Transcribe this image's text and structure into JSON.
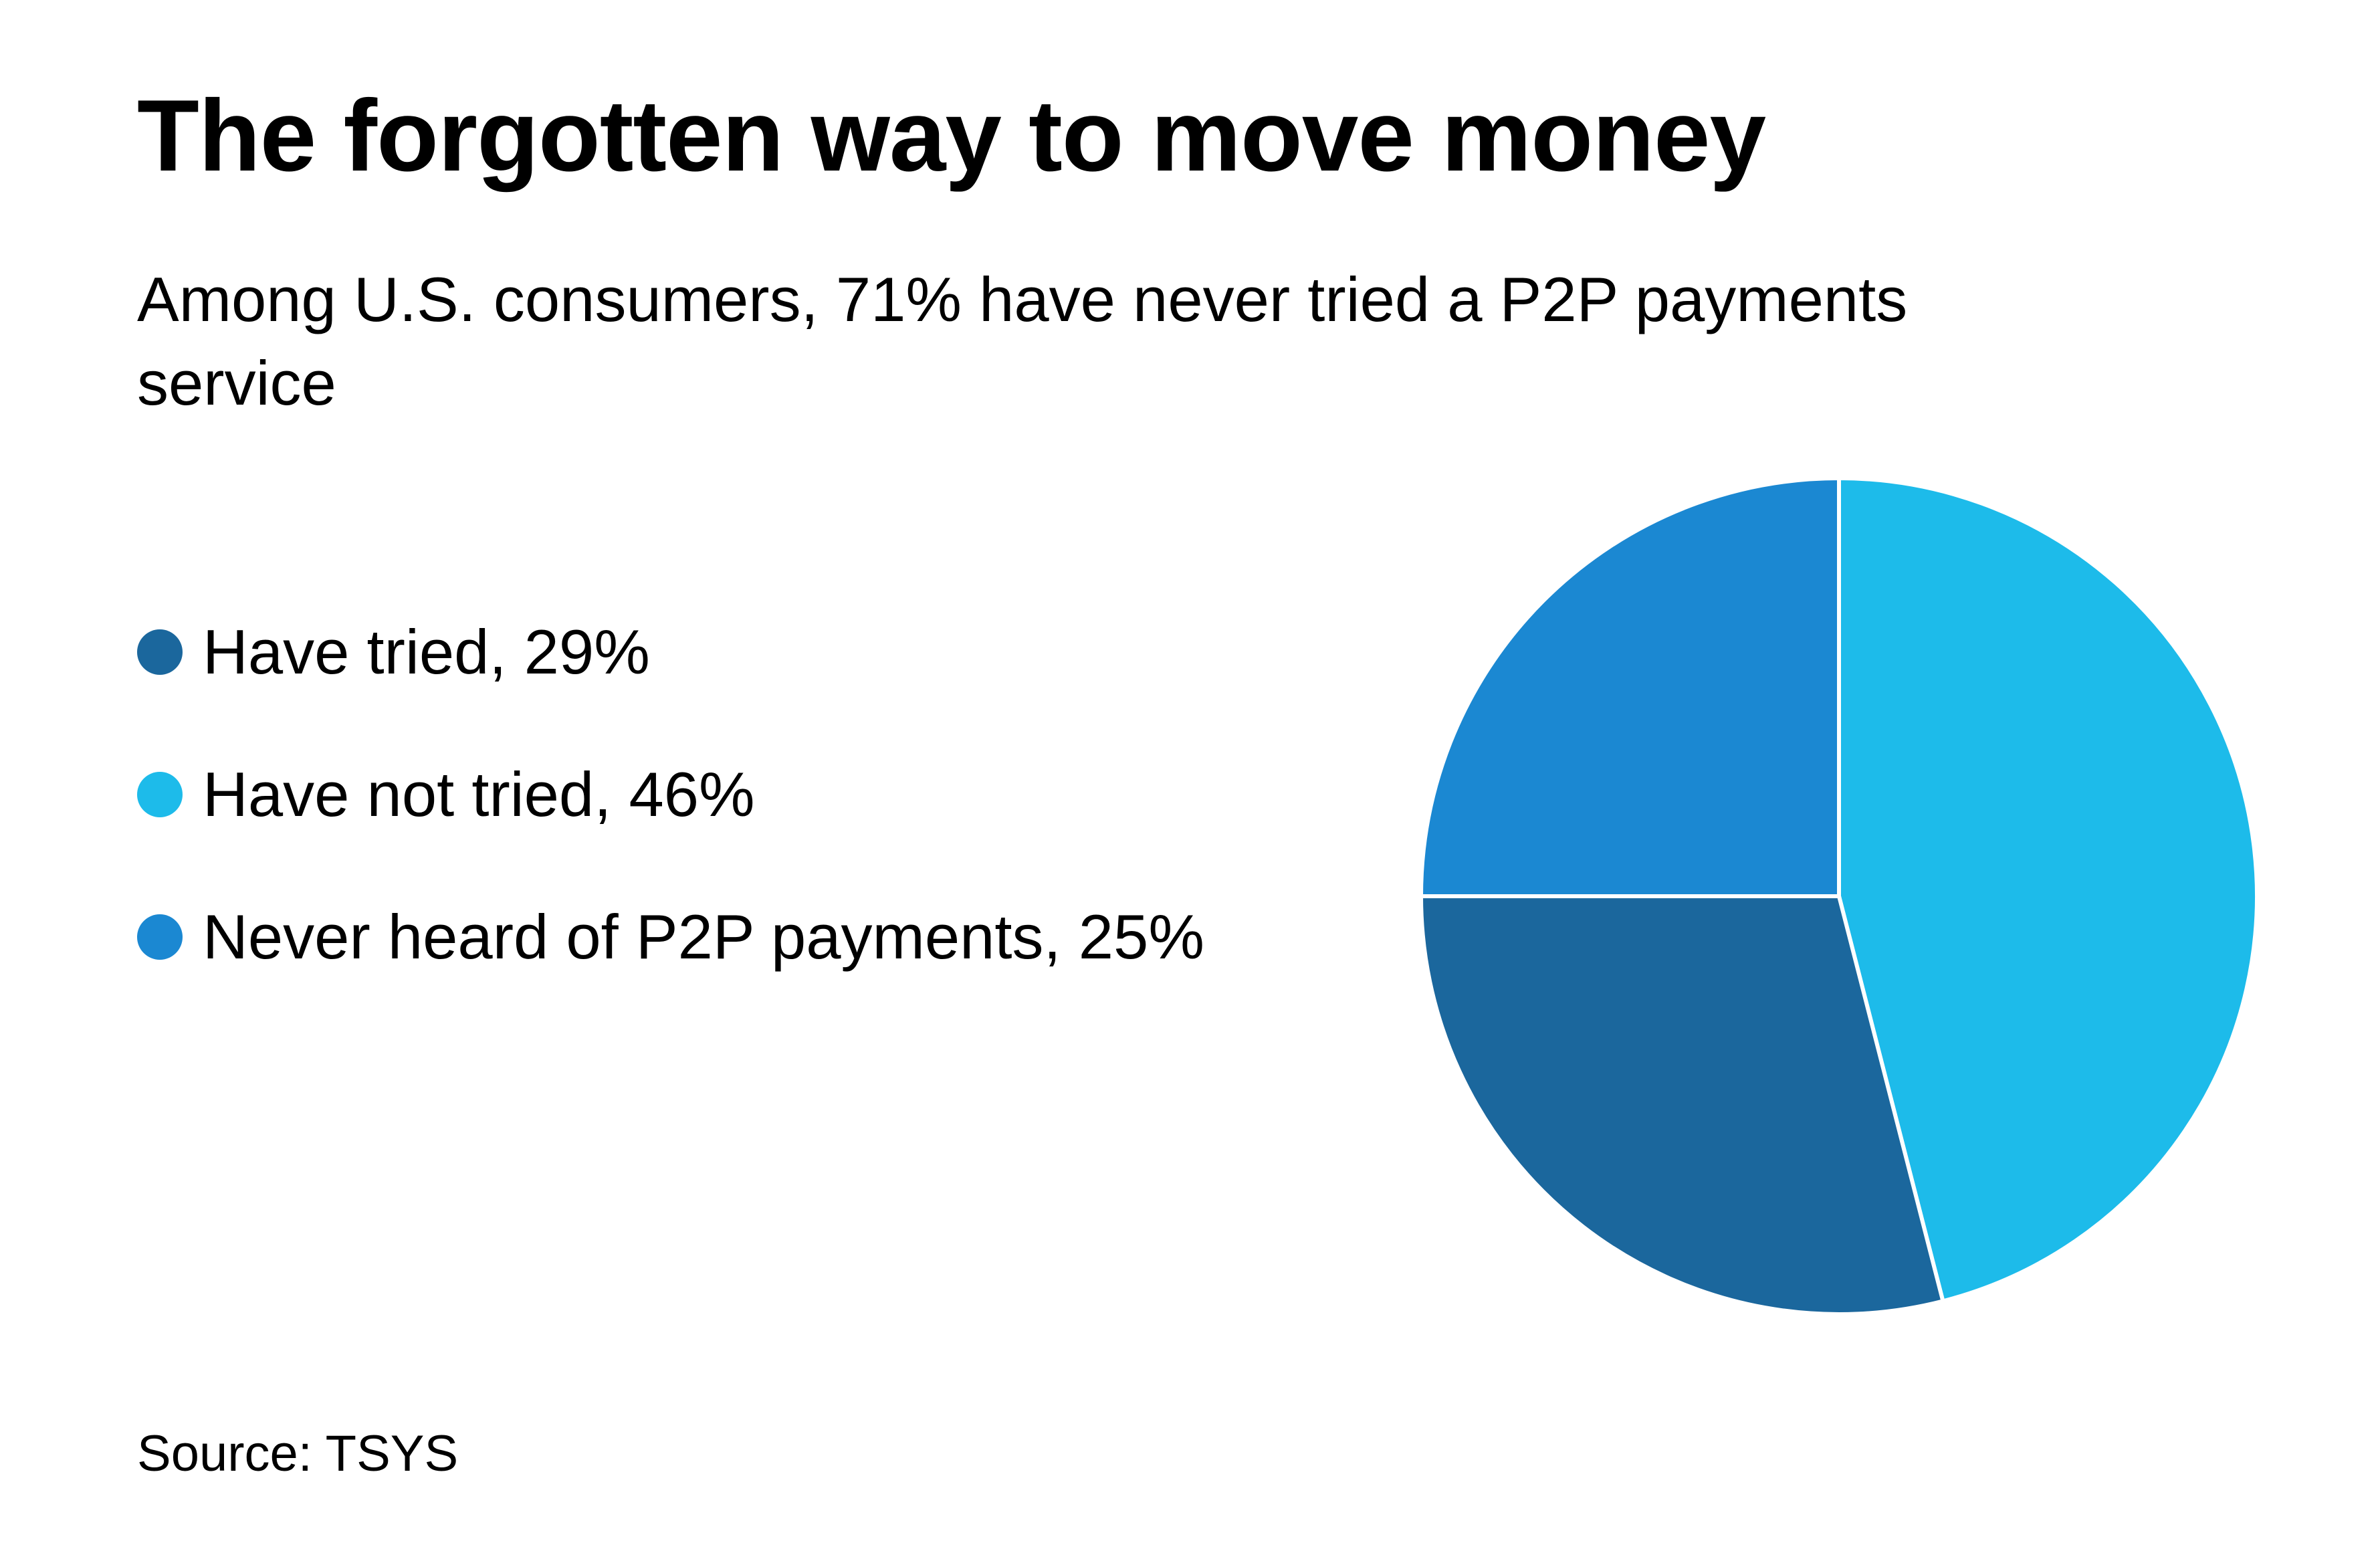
{
  "chart_data": {
    "type": "pie",
    "title": "The forgotten way to move money",
    "subtitle": "Among U.S. consumers, 71% have never tried a P2P payments service",
    "slices": [
      {
        "label": "Have tried, 29%",
        "value": 29,
        "color": "#1b679d"
      },
      {
        "label": "Have not tried, 46%",
        "value": 46,
        "color": "#1dbbea"
      },
      {
        "label": "Never heard of P2P payments, 25%",
        "value": 25,
        "color": "#1b88d2"
      }
    ],
    "legend_position": "left",
    "source": "Source: TSYS"
  }
}
